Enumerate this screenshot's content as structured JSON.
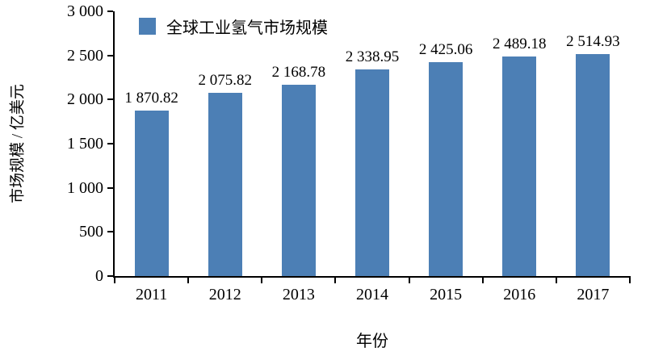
{
  "chart_data": {
    "type": "bar",
    "title": "",
    "legend": [
      "全球工业氢气市场规模"
    ],
    "categories": [
      "2011",
      "2012",
      "2013",
      "2014",
      "2015",
      "2016",
      "2017"
    ],
    "values": [
      1870.82,
      2075.82,
      2168.78,
      2338.95,
      2425.06,
      2489.18,
      2514.93
    ],
    "value_labels": [
      "1 870.82",
      "2 075.82",
      "2 168.78",
      "2 338.95",
      "2 425.06",
      "2 489.18",
      "2 514.93"
    ],
    "xlabel": "年份",
    "ylabel": "市场规模 / 亿美元",
    "ylim": [
      0,
      3000
    ],
    "ytick_values": [
      0,
      500,
      1000,
      1500,
      2000,
      2500,
      3000
    ],
    "ytick_labels": [
      "0",
      "500",
      "1 000",
      "1 500",
      "2 000",
      "2 500",
      "3 000"
    ],
    "bar_color": "#4C7FB5",
    "axis_color": "#000000",
    "grid": false,
    "legend_position": "top-left"
  }
}
